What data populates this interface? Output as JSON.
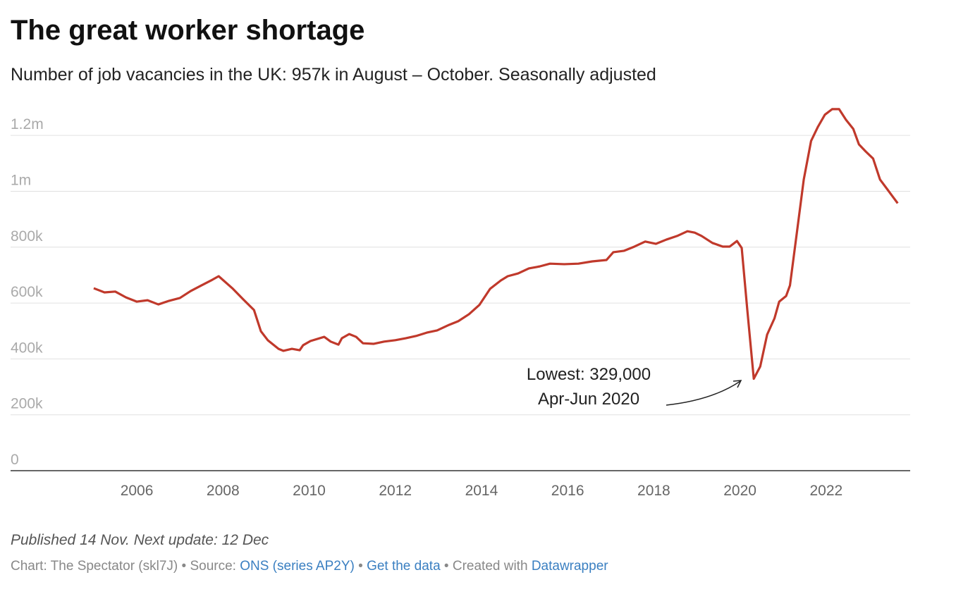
{
  "chart_data": {
    "type": "line",
    "title": "The great worker shortage",
    "subtitle": "Number of job vacancies in the UK: 957k in August – October. Seasonally adjusted",
    "x": [
      2005.0,
      2005.25,
      2005.5,
      2005.75,
      2006.0,
      2006.25,
      2006.5,
      2006.75,
      2007.0,
      2007.25,
      2007.5,
      2007.75,
      2007.9,
      2008.23,
      2008.47,
      2008.72,
      2008.88,
      2009.04,
      2009.29,
      2009.4,
      2009.6,
      2009.78,
      2009.86,
      2010.03,
      2010.35,
      2010.5,
      2010.68,
      2010.76,
      2010.93,
      2011.09,
      2011.25,
      2011.5,
      2011.74,
      2012.0,
      2012.24,
      2012.48,
      2012.73,
      2012.97,
      2013.22,
      2013.46,
      2013.71,
      2013.95,
      2014.2,
      2014.45,
      2014.61,
      2014.85,
      2015.1,
      2015.35,
      2015.59,
      2015.92,
      2016.25,
      2016.57,
      2016.9,
      2017.06,
      2017.31,
      2017.55,
      2017.8,
      2018.05,
      2018.29,
      2018.54,
      2018.78,
      2018.95,
      2019.11,
      2019.36,
      2019.6,
      2019.76,
      2019.93,
      2020.04,
      2020.17,
      2020.32,
      2020.47,
      2020.63,
      2020.8,
      2020.91,
      2021.07,
      2021.16,
      2021.32,
      2021.48,
      2021.65,
      2021.81,
      2021.97,
      2022.14,
      2022.3,
      2022.46,
      2022.63,
      2022.76,
      2022.92,
      2023.09,
      2023.25,
      2023.41,
      2023.53,
      2023.66
    ],
    "series": [
      {
        "name": "Job vacancies",
        "color": "#c0392b",
        "values": [
          653000,
          638000,
          641000,
          620000,
          605000,
          610000,
          595000,
          608000,
          618000,
          643000,
          663000,
          683000,
          696000,
          651000,
          613000,
          575000,
          499000,
          467000,
          436000,
          429000,
          436000,
          431000,
          449000,
          464000,
          479000,
          462000,
          451000,
          474000,
          489000,
          479000,
          456000,
          454000,
          462000,
          467000,
          474000,
          482000,
          494000,
          502000,
          520000,
          535000,
          560000,
          593000,
          651000,
          681000,
          696000,
          706000,
          724000,
          731000,
          741000,
          739000,
          741000,
          749000,
          754000,
          782000,
          787000,
          802000,
          820000,
          812000,
          827000,
          840000,
          857000,
          852000,
          840000,
          815000,
          802000,
          802000,
          822000,
          797000,
          575000,
          329000,
          373000,
          487000,
          545000,
          605000,
          625000,
          663000,
          852000,
          1042000,
          1180000,
          1231000,
          1274000,
          1294000,
          1294000,
          1256000,
          1223000,
          1168000,
          1142000,
          1117000,
          1042000,
          1009000,
          984000,
          957000
        ]
      }
    ],
    "xlim": [
      2003.07,
      2023.95
    ],
    "xticks": [
      2006,
      2008,
      2010,
      2012,
      2014,
      2016,
      2018,
      2020,
      2022
    ],
    "ylim": [
      0,
      1300000
    ],
    "yticks": [
      0,
      {
        "value": 200000,
        "label": "200k"
      },
      {
        "value": 400000,
        "label": "400k"
      },
      {
        "value": 600000,
        "label": "600k"
      },
      {
        "value": 800000,
        "label": "800k"
      },
      {
        "value": 1000000,
        "label": "1m"
      },
      {
        "value": 1200000,
        "label": "1.2m"
      }
    ],
    "grid": true,
    "annotations": [
      {
        "text": "Lowest: 329,000"
      },
      {
        "text": "Apr-Jun 2020"
      }
    ],
    "footer": {
      "published": "Published 14 Nov. Next update: 12 Dec",
      "byline": "Chart: The Spectator (skl7J)",
      "separator": "•",
      "source_label": "Source:",
      "source": "ONS (series AP2Y)",
      "get_data": "Get the data",
      "created_with": "Created with",
      "tool": "Datawrapper"
    }
  }
}
